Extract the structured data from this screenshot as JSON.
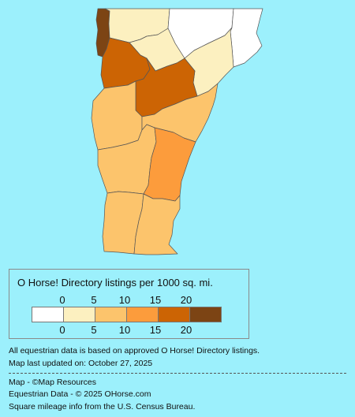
{
  "legend": {
    "title": "O Horse! Directory listings per 1000 sq. mi.",
    "ticks": [
      "0",
      "5",
      "10",
      "15",
      "20"
    ],
    "scale_colors": [
      "#ffffff",
      "#fcf0c0",
      "#fcc46c",
      "#fc9c3c",
      "#cc6404",
      "#7c4414"
    ]
  },
  "notes": {
    "data_note": "All equestrian data is based on approved O Horse! Directory listings.",
    "updated": "Map last updated on: October 27, 2025",
    "map_credit": "Map - ©Map Resources",
    "data_credit": "Equestrian Data - © 2025 OHorse.com",
    "census_credit": "Square mileage info from the U.S. Census Bureau."
  },
  "map": {
    "counties": [
      {
        "name": "grand-isle",
        "color": "#7c4414"
      },
      {
        "name": "franklin",
        "color": "#fcf0c0"
      },
      {
        "name": "orleans",
        "color": "#ffffff"
      },
      {
        "name": "essex",
        "color": "#ffffff"
      },
      {
        "name": "lamoille",
        "color": "#fcf0c0"
      },
      {
        "name": "caledonia",
        "color": "#fcf0c0"
      },
      {
        "name": "chittenden",
        "color": "#cc6404"
      },
      {
        "name": "washington",
        "color": "#cc6404"
      },
      {
        "name": "addison",
        "color": "#fcc46c"
      },
      {
        "name": "orange",
        "color": "#fcc46c"
      },
      {
        "name": "rutland",
        "color": "#fcc46c"
      },
      {
        "name": "windsor",
        "color": "#fc9c3c"
      },
      {
        "name": "bennington",
        "color": "#fcc46c"
      },
      {
        "name": "windham",
        "color": "#fcc46c"
      }
    ]
  }
}
